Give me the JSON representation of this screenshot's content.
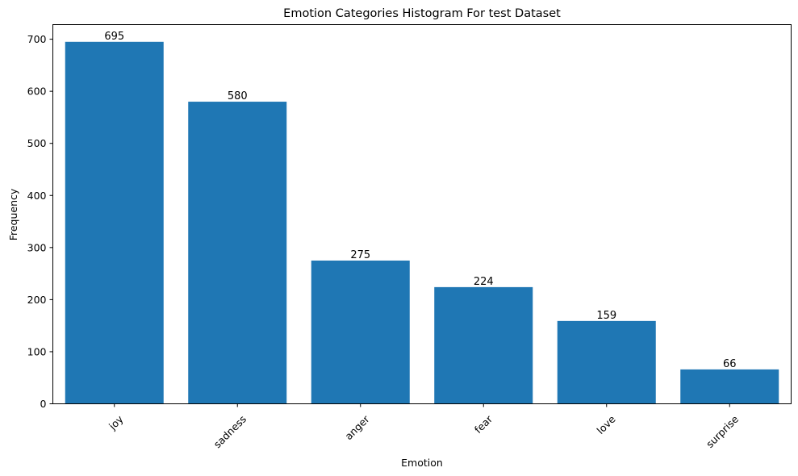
{
  "chart_data": {
    "type": "bar",
    "title": "Emotion Categories Histogram For test Dataset",
    "xlabel": "Emotion",
    "ylabel": "Frequency",
    "categories": [
      "joy",
      "sadness",
      "anger",
      "fear",
      "love",
      "surprise"
    ],
    "values": [
      695,
      580,
      275,
      224,
      159,
      66
    ],
    "data_labels": [
      "695",
      "580",
      "275",
      "224",
      "159",
      "66"
    ],
    "ylim": [
      0,
      728
    ],
    "yticks": [
      0,
      100,
      200,
      300,
      400,
      500,
      600,
      700
    ],
    "grid": false,
    "legend": "none",
    "bar_color": "#1f77b4",
    "xtick_rotation_deg": 45
  }
}
